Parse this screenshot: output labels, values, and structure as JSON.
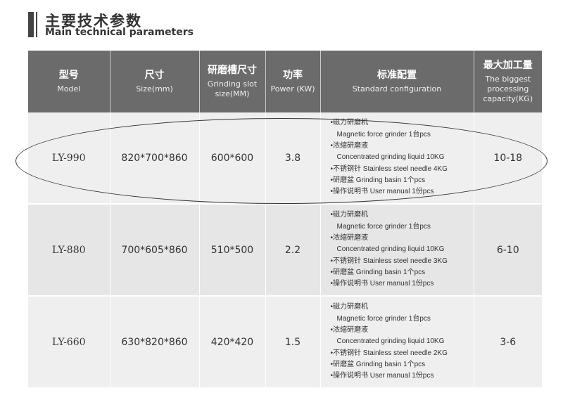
{
  "title": {
    "cn": "主要技术参数",
    "en": "Main technical parameters"
  },
  "headers": [
    {
      "cn": "型号",
      "en": "Model"
    },
    {
      "cn": "尺寸",
      "en": "Size(mm)"
    },
    {
      "cn": "研磨槽尺寸",
      "en": "Grinding slot size(MM)"
    },
    {
      "cn": "功率",
      "en": "Power (KW)"
    },
    {
      "cn": "标准配置",
      "en": "Standard configuration"
    },
    {
      "cn": "最大加工量",
      "en": "The biggest processing capacity(KG)"
    }
  ],
  "rows": [
    {
      "model": "LY-990",
      "size": "820*700*860",
      "slot": "600*600",
      "power": "3.8",
      "capacity": "10-18",
      "highlighted": true,
      "config": [
        "•磁力研磨机",
        "Magnetic force grinder 1台pcs",
        "•浓缩研磨液",
        "Concentrated grinding  liquid  10KG",
        "•不锈钢针 Stainless steel needle 4KG",
        "•研磨盆 Grinding basin 1个pcs",
        "•操作说明书 User manual 1份pcs"
      ]
    },
    {
      "model": "LY-880",
      "size": "700*605*860",
      "slot": "510*500",
      "power": "2.2",
      "capacity": "6-10",
      "config": [
        "•磁力研磨机",
        "Magnetic force grinder 1台pcs",
        "•浓缩研磨液",
        "Concentrated grinding  liquid  10KG",
        "•不锈钢针 Stainless steel needle 3KG",
        "•研磨盆 Grinding basin 1个pcs",
        "•操作说明书 User manual 1份pcs"
      ]
    },
    {
      "model": "LY-660",
      "size": "630*820*860",
      "slot": "420*420",
      "power": "1.5",
      "capacity": "3-6",
      "config": [
        "•磁力研磨机",
        "Magnetic force grinder 1台pcs",
        "•浓缩研磨液",
        "Concentrated grinding  liquid  10KG",
        "•不锈钢针 Stainless steel needle 2KG",
        "•研磨盆 Grinding basin 1个pcs",
        "•操作说明书 User manual 1份pcs"
      ]
    }
  ]
}
